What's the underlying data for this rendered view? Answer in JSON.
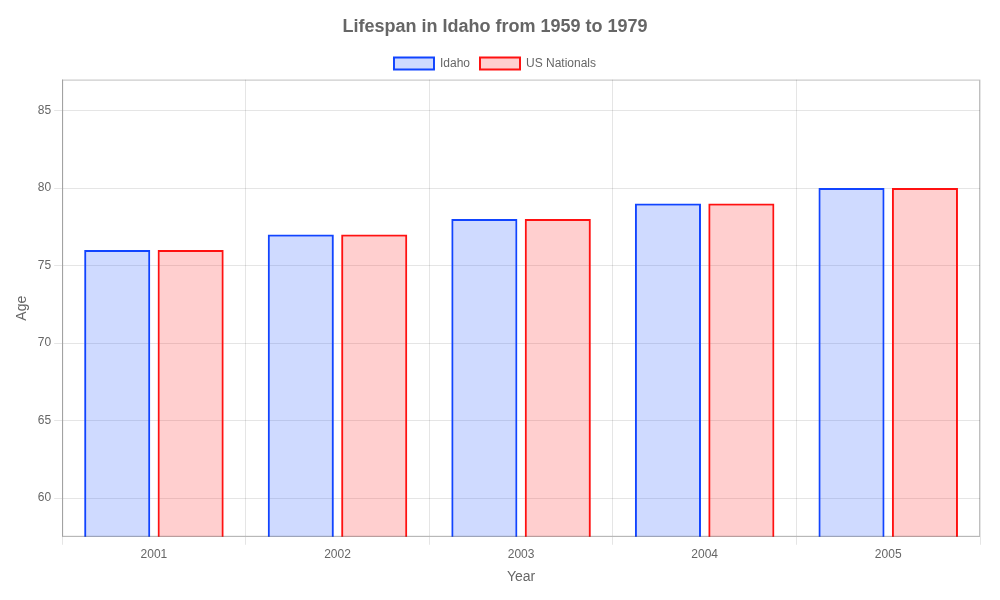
{
  "chart_data": {
    "type": "bar",
    "title": "Lifespan in Idaho from 1959 to 1979",
    "xlabel": "Year",
    "ylabel": "Age",
    "categories": [
      "2001",
      "2002",
      "2003",
      "2004",
      "2005"
    ],
    "series": [
      {
        "name": "Idaho",
        "color": "#1144ff",
        "values": [
          76.0,
          77.0,
          78.0,
          79.0,
          80.0
        ]
      },
      {
        "name": "US Nationals",
        "color": "#ff1111",
        "values": [
          76.0,
          77.0,
          78.0,
          79.0,
          80.0
        ]
      }
    ],
    "ylim": [
      57.5,
      87
    ],
    "yticks": [
      60,
      65,
      70,
      75,
      80,
      85
    ],
    "grid": true,
    "legend": "top"
  }
}
